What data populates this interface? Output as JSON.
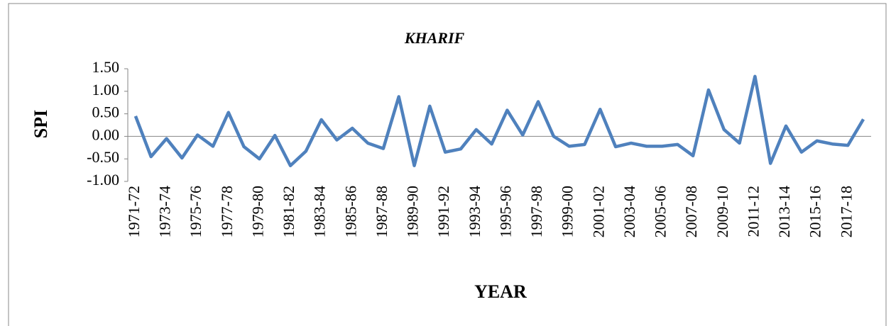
{
  "chart_data": {
    "type": "line",
    "title": "KHARIF",
    "x_label": "YEAR",
    "y_label": "SPI",
    "categories": [
      "1971-72",
      null,
      "1973-74",
      null,
      "1975-76",
      null,
      "1977-78",
      null,
      "1979-80",
      null,
      "1981-82",
      null,
      "1983-84",
      null,
      "1985-86",
      null,
      "1987-88",
      null,
      "1989-90",
      null,
      "1991-92",
      null,
      "1993-94",
      null,
      "1995-96",
      null,
      "1997-98",
      null,
      "1999-00",
      null,
      "2001-02",
      null,
      "2003-04",
      null,
      "2005-06",
      null,
      "2007-08",
      null,
      "2009-10",
      null,
      "2011-12",
      null,
      "2013-14",
      null,
      "2015-16",
      null,
      "2017-18",
      null
    ],
    "values": [
      0.45,
      -0.45,
      -0.05,
      -0.48,
      0.03,
      -0.22,
      0.53,
      -0.23,
      -0.5,
      0.02,
      -0.65,
      -0.33,
      0.37,
      -0.08,
      0.18,
      -0.15,
      -0.27,
      0.88,
      -0.65,
      0.67,
      -0.35,
      -0.28,
      0.15,
      -0.17,
      0.58,
      0.03,
      0.77,
      0.0,
      -0.22,
      -0.18,
      0.6,
      -0.23,
      -0.15,
      -0.22,
      -0.22,
      -0.18,
      -0.43,
      1.03,
      0.15,
      -0.15,
      1.33,
      -0.6,
      0.23,
      -0.35,
      -0.1,
      -0.17,
      -0.2,
      0.38
    ],
    "color": "#4f81bd",
    "ylim": [
      -1,
      1.5
    ],
    "yticks": [
      {
        "value": -1,
        "label": "-1.00"
      },
      {
        "value": -0.5,
        "label": "-0.50"
      },
      {
        "value": 0,
        "label": "0.00"
      },
      {
        "value": 0.5,
        "label": "0.50"
      },
      {
        "value": 1,
        "label": "1.00"
      },
      {
        "value": 1.5,
        "label": "1.50"
      }
    ]
  }
}
